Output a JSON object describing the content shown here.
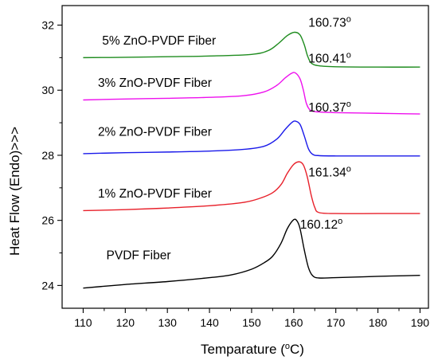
{
  "chart_data": {
    "type": "line",
    "title": "",
    "xlabel": {
      "prefix": "Temparature (",
      "sup": "o",
      "suffix": "C)"
    },
    "ylabel": "Heat Flow (Endo)>>>",
    "xlim": [
      105,
      192
    ],
    "ylim": [
      23.3,
      32.6
    ],
    "xticks": [
      110,
      120,
      130,
      140,
      150,
      160,
      170,
      180,
      190
    ],
    "yticks": [
      24,
      26,
      28,
      30,
      32
    ],
    "grid": false,
    "legend": "none",
    "series": [
      {
        "name": "PVDF Fiber",
        "color": "#000000",
        "label_x": 115.5,
        "label_y": 24.8,
        "peak_label": {
          "value": "160.12",
          "sup": "o",
          "x": 161.5,
          "y": 25.75
        },
        "points": [
          [
            110,
            23.92
          ],
          [
            120,
            24.03
          ],
          [
            130,
            24.12
          ],
          [
            140,
            24.24
          ],
          [
            145,
            24.32
          ],
          [
            150,
            24.5
          ],
          [
            153,
            24.7
          ],
          [
            155,
            24.9
          ],
          [
            157,
            25.3
          ],
          [
            158.5,
            25.75
          ],
          [
            160,
            26.02
          ],
          [
            160.8,
            25.98
          ],
          [
            161.5,
            25.75
          ],
          [
            162.5,
            25.1
          ],
          [
            163.5,
            24.55
          ],
          [
            164.5,
            24.3
          ],
          [
            166,
            24.23
          ],
          [
            170,
            24.24
          ],
          [
            180,
            24.28
          ],
          [
            190,
            24.31
          ]
        ]
      },
      {
        "name": "1% ZnO-PVDF Fiber",
        "color": "#e8202a",
        "label_x": 113.5,
        "label_y": 26.7,
        "peak_label": {
          "value": "161.34",
          "sup": "o",
          "x": 163.5,
          "y": 27.35
        },
        "points": [
          [
            110,
            26.3
          ],
          [
            120,
            26.33
          ],
          [
            130,
            26.38
          ],
          [
            140,
            26.45
          ],
          [
            148,
            26.55
          ],
          [
            152,
            26.68
          ],
          [
            155,
            26.85
          ],
          [
            157,
            27.1
          ],
          [
            158.5,
            27.45
          ],
          [
            160,
            27.72
          ],
          [
            161.3,
            27.8
          ],
          [
            162.3,
            27.7
          ],
          [
            163.2,
            27.35
          ],
          [
            164.2,
            26.75
          ],
          [
            165,
            26.4
          ],
          [
            166,
            26.24
          ],
          [
            170,
            26.21
          ],
          [
            180,
            26.21
          ],
          [
            190,
            26.21
          ]
        ]
      },
      {
        "name": "2% ZnO-PVDF Fiber",
        "color": "#1a1aea",
        "label_x": 113.5,
        "label_y": 28.6,
        "peak_label": {
          "value": "160.37",
          "sup": "o",
          "x": 163.5,
          "y": 29.35
        },
        "points": [
          [
            110,
            28.05
          ],
          [
            120,
            28.08
          ],
          [
            130,
            28.1
          ],
          [
            140,
            28.13
          ],
          [
            148,
            28.18
          ],
          [
            153,
            28.28
          ],
          [
            156,
            28.5
          ],
          [
            158,
            28.8
          ],
          [
            159.5,
            29.0
          ],
          [
            160.4,
            29.05
          ],
          [
            161.5,
            28.95
          ],
          [
            162.5,
            28.6
          ],
          [
            163.5,
            28.2
          ],
          [
            164.5,
            28.03
          ],
          [
            166,
            27.99
          ],
          [
            170,
            27.98
          ],
          [
            180,
            27.98
          ],
          [
            190,
            27.98
          ]
        ]
      },
      {
        "name": "3% ZnO-PVDF Fiber",
        "color": "#ee10ee",
        "label_x": 113.5,
        "label_y": 30.1,
        "peak_label": {
          "value": "160.41",
          "sup": "o",
          "x": 163.5,
          "y": 30.85
        },
        "points": [
          [
            110,
            29.7
          ],
          [
            120,
            29.73
          ],
          [
            130,
            29.75
          ],
          [
            140,
            29.78
          ],
          [
            148,
            29.83
          ],
          [
            153,
            29.95
          ],
          [
            156,
            30.15
          ],
          [
            158,
            30.38
          ],
          [
            159.5,
            30.52
          ],
          [
            160.4,
            30.53
          ],
          [
            161.5,
            30.35
          ],
          [
            162.3,
            30.0
          ],
          [
            163,
            29.6
          ],
          [
            164,
            29.38
          ],
          [
            166,
            29.33
          ],
          [
            170,
            29.31
          ],
          [
            180,
            29.29
          ],
          [
            190,
            29.27
          ]
        ]
      },
      {
        "name": "5% ZnO-PVDF Fiber",
        "color": "#1f8c1f",
        "label_x": 114.5,
        "label_y": 31.4,
        "peak_label": {
          "value": "160.73",
          "sup": "o",
          "x": 163.5,
          "y": 31.95
        },
        "points": [
          [
            110,
            31.0
          ],
          [
            120,
            31.01
          ],
          [
            130,
            31.03
          ],
          [
            140,
            31.05
          ],
          [
            150,
            31.1
          ],
          [
            154,
            31.22
          ],
          [
            156.5,
            31.45
          ],
          [
            158.5,
            31.68
          ],
          [
            160.2,
            31.78
          ],
          [
            161.5,
            31.7
          ],
          [
            162.5,
            31.4
          ],
          [
            163.3,
            31.05
          ],
          [
            164.2,
            30.83
          ],
          [
            166,
            30.75
          ],
          [
            170,
            30.72
          ],
          [
            180,
            30.71
          ],
          [
            190,
            30.71
          ]
        ]
      }
    ]
  }
}
